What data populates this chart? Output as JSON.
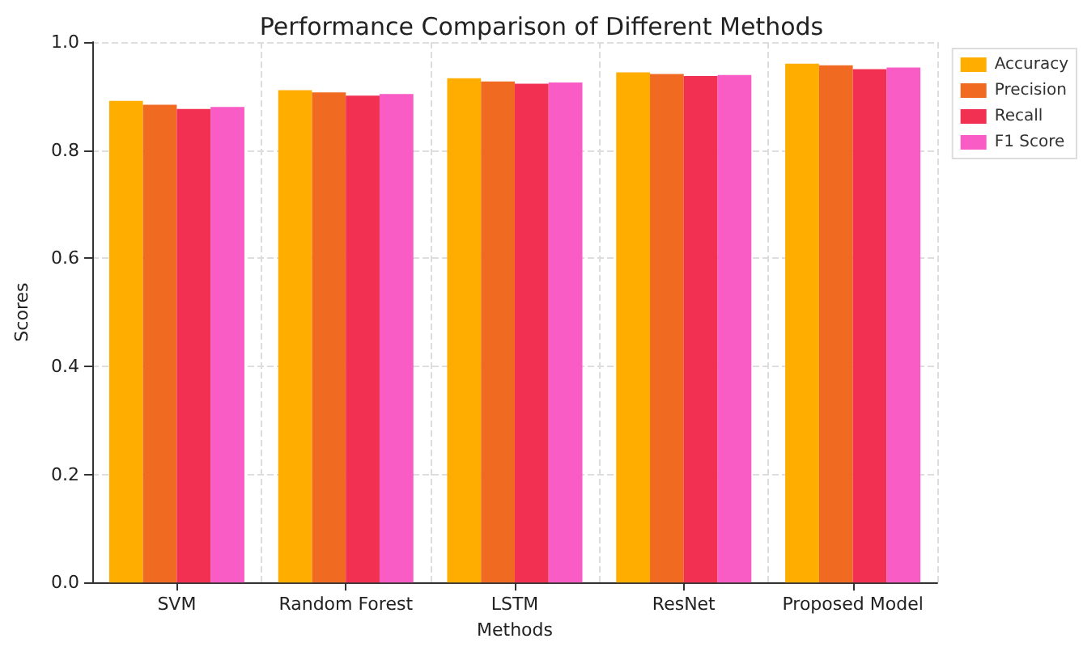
{
  "chart_data": {
    "type": "bar",
    "title": "Performance Comparison of Different Methods",
    "xlabel": "Methods",
    "ylabel": "Scores",
    "categories": [
      "SVM",
      "Random Forest",
      "LSTM",
      "ResNet",
      "Proposed Model"
    ],
    "series": [
      {
        "name": "Accuracy",
        "color": "#ffae00",
        "values": [
          0.891,
          0.911,
          0.933,
          0.944,
          0.96
        ]
      },
      {
        "name": "Precision",
        "color": "#f06a22",
        "values": [
          0.884,
          0.907,
          0.927,
          0.941,
          0.957
        ]
      },
      {
        "name": "Recall",
        "color": "#f23152",
        "values": [
          0.876,
          0.901,
          0.923,
          0.937,
          0.95
        ]
      },
      {
        "name": "F1 Score",
        "color": "#f95cc4",
        "values": [
          0.88,
          0.904,
          0.925,
          0.939,
          0.953
        ]
      }
    ],
    "ylim": [
      0,
      1
    ],
    "yticks": [
      {
        "value": 0,
        "label": "0.0"
      },
      {
        "value": 0.2,
        "label": "0.2"
      },
      {
        "value": 0.4,
        "label": "0.4"
      },
      {
        "value": 0.6,
        "label": "0.6"
      },
      {
        "value": 0.8,
        "label": "0.8"
      },
      {
        "value": 1,
        "label": "1.0"
      }
    ],
    "grid": true,
    "legend": "top right"
  }
}
